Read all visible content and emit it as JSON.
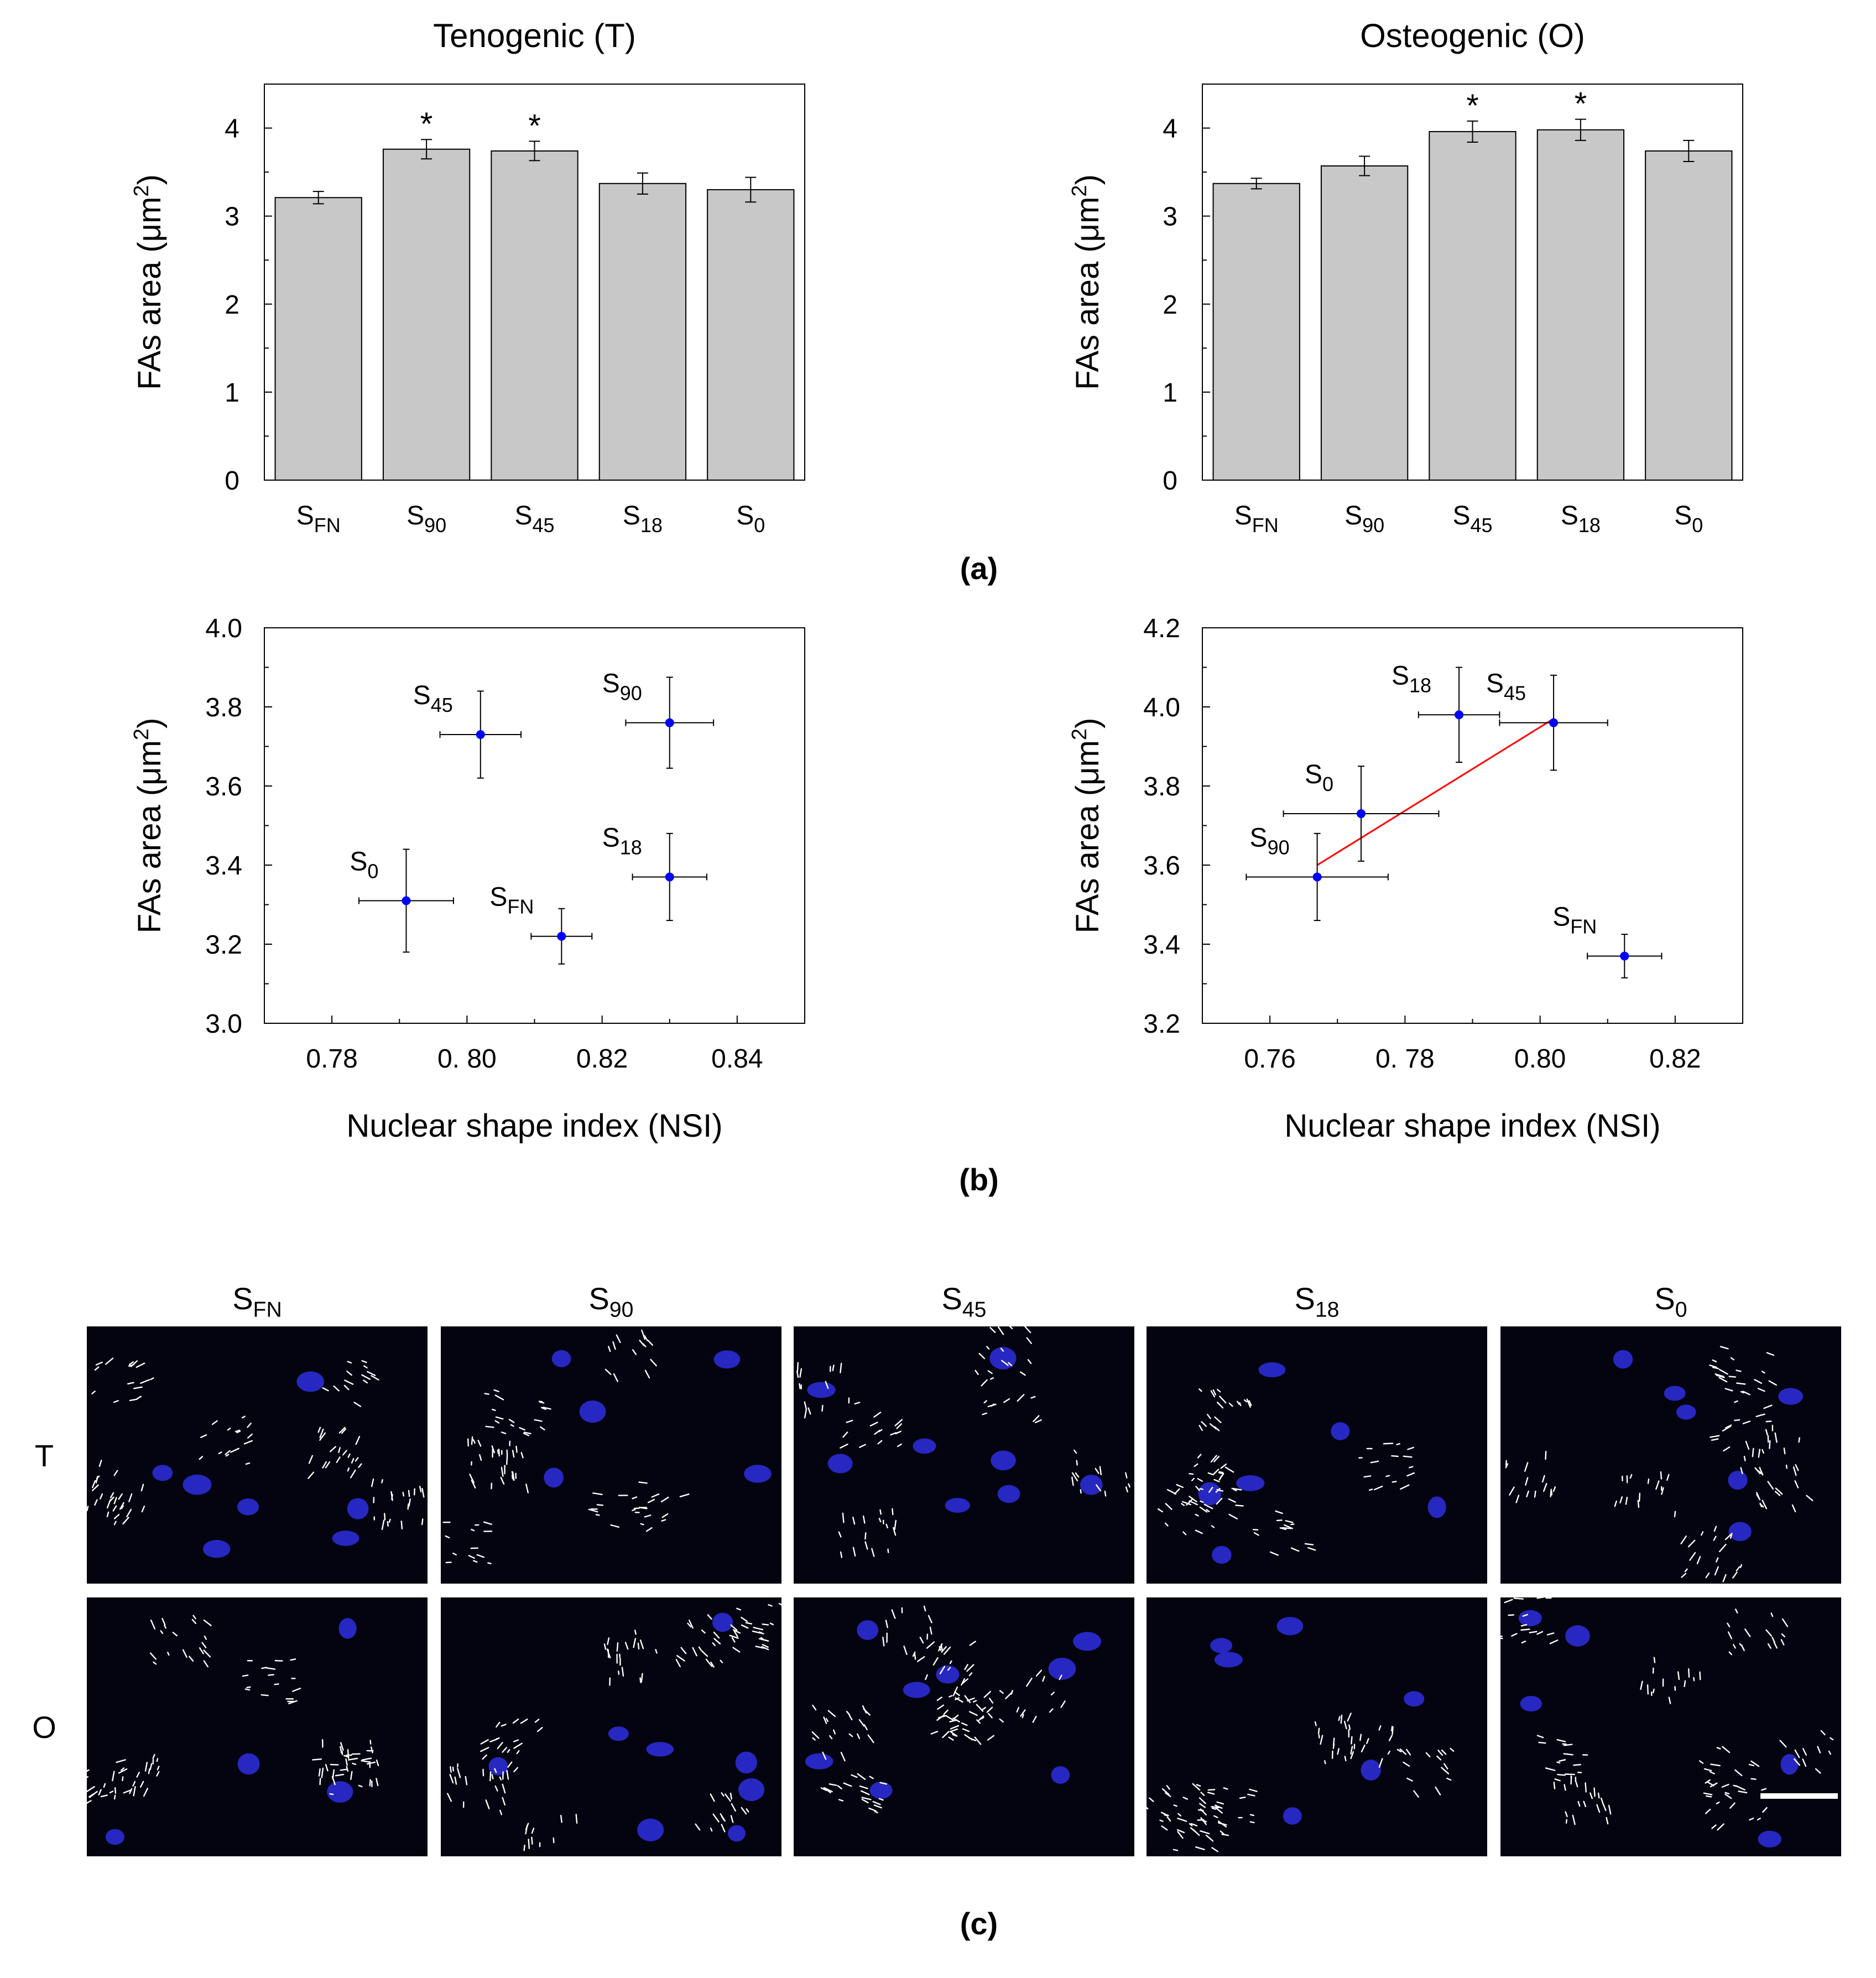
{
  "panel_labels": {
    "a": "(a)",
    "b": "(b)",
    "c": "(c)"
  },
  "colors": {
    "bar_fill": "#c8c8c8",
    "point": "#0000ff",
    "fit_line": "#ff0000",
    "image_bg": "#03040f",
    "nucleus": "#2b2bd6",
    "focal_adhesion": "#ffffff"
  },
  "chart_data": [
    {
      "id": "bar-tenogenic",
      "type": "bar",
      "title": "Tenogenic (T)",
      "xlabel": "",
      "ylabel": "FAs area (μm²)",
      "ylim": [
        0,
        4.5
      ],
      "yticks": [
        0,
        1,
        2,
        3,
        4
      ],
      "categories": [
        {
          "base": "S",
          "sub": "FN"
        },
        {
          "base": "S",
          "sub": "90"
        },
        {
          "base": "S",
          "sub": "45"
        },
        {
          "base": "S",
          "sub": "18"
        },
        {
          "base": "S",
          "sub": "0"
        }
      ],
      "values": [
        3.21,
        3.76,
        3.74,
        3.37,
        3.3
      ],
      "errors": [
        0.07,
        0.11,
        0.11,
        0.12,
        0.14
      ],
      "annotations": [
        "",
        "*",
        "*",
        "",
        ""
      ]
    },
    {
      "id": "bar-osteogenic",
      "type": "bar",
      "title": "Osteogenic (O)",
      "xlabel": "",
      "ylabel": "FAs area (μm²)",
      "ylim": [
        0,
        4.5
      ],
      "yticks": [
        0,
        1,
        2,
        3,
        4
      ],
      "categories": [
        {
          "base": "S",
          "sub": "FN"
        },
        {
          "base": "S",
          "sub": "90"
        },
        {
          "base": "S",
          "sub": "45"
        },
        {
          "base": "S",
          "sub": "18"
        },
        {
          "base": "S",
          "sub": "0"
        }
      ],
      "values": [
        3.37,
        3.57,
        3.96,
        3.98,
        3.74
      ],
      "errors": [
        0.06,
        0.11,
        0.12,
        0.12,
        0.12
      ],
      "annotations": [
        "",
        "",
        "*",
        "*",
        ""
      ]
    },
    {
      "id": "scatter-tenogenic",
      "type": "scatter",
      "xlabel": "Nuclear shape index (NSI)",
      "ylabel": "FAs area (μm²)",
      "xlim": [
        0.77,
        0.85
      ],
      "ylim": [
        3.0,
        4.0
      ],
      "xticks": [
        0.78,
        0.8,
        0.82,
        0.84
      ],
      "xtick_labels": [
        "0.78",
        "0. 80",
        "0.82",
        "0.84"
      ],
      "yticks": [
        3.0,
        3.2,
        3.4,
        3.6,
        3.8,
        4.0
      ],
      "ytick_labels": [
        "3.0",
        "3.2",
        "3.4",
        "3.6",
        "3.8",
        "4.0"
      ],
      "points": [
        {
          "label": {
            "base": "S",
            "sub": "45"
          },
          "x": 0.802,
          "y": 3.73,
          "xerr": 0.006,
          "yerr": 0.11,
          "label_pos": "upper-left"
        },
        {
          "label": {
            "base": "S",
            "sub": "90"
          },
          "x": 0.83,
          "y": 3.76,
          "xerr": 0.0065,
          "yerr": 0.115,
          "label_pos": "upper-left"
        },
        {
          "label": {
            "base": "S",
            "sub": "0"
          },
          "x": 0.791,
          "y": 3.31,
          "xerr": 0.007,
          "yerr": 0.13,
          "label_pos": "upper-left"
        },
        {
          "label": {
            "base": "S",
            "sub": "FN"
          },
          "x": 0.814,
          "y": 3.22,
          "xerr": 0.0045,
          "yerr": 0.07,
          "label_pos": "upper-left"
        },
        {
          "label": {
            "base": "S",
            "sub": "18"
          },
          "x": 0.83,
          "y": 3.37,
          "xerr": 0.0055,
          "yerr": 0.11,
          "label_pos": "upper-left"
        }
      ]
    },
    {
      "id": "scatter-osteogenic",
      "type": "scatter",
      "xlabel": "Nuclear shape index (NSI)",
      "ylabel": "FAs area (μm²)",
      "xlim": [
        0.75,
        0.83
      ],
      "ylim": [
        3.2,
        4.2
      ],
      "xticks": [
        0.76,
        0.78,
        0.8,
        0.82
      ],
      "xtick_labels": [
        "0.76",
        "0. 78",
        "0.80",
        "0.82"
      ],
      "yticks": [
        3.2,
        3.4,
        3.6,
        3.8,
        4.0,
        4.2
      ],
      "ytick_labels": [
        "3.2",
        "3.4",
        "3.6",
        "3.8",
        "4.0",
        "4.2"
      ],
      "points": [
        {
          "label": {
            "base": "S",
            "sub": "18"
          },
          "x": 0.788,
          "y": 3.98,
          "xerr": 0.006,
          "yerr": 0.12,
          "label_pos": "upper-left"
        },
        {
          "label": {
            "base": "S",
            "sub": "45"
          },
          "x": 0.802,
          "y": 3.96,
          "xerr": 0.008,
          "yerr": 0.12,
          "label_pos": "upper-left"
        },
        {
          "label": {
            "base": "S",
            "sub": "0"
          },
          "x": 0.7735,
          "y": 3.73,
          "xerr": 0.0115,
          "yerr": 0.12,
          "label_pos": "upper-left"
        },
        {
          "label": {
            "base": "S",
            "sub": "90"
          },
          "x": 0.767,
          "y": 3.57,
          "xerr": 0.0105,
          "yerr": 0.11,
          "label_pos": "upper-left"
        },
        {
          "label": {
            "base": "S",
            "sub": "FN"
          },
          "x": 0.8125,
          "y": 3.37,
          "xerr": 0.0055,
          "yerr": 0.055,
          "label_pos": "upper-left"
        }
      ],
      "fit_line": {
        "x": [
          0.767,
          0.802
        ],
        "y": [
          3.6,
          3.97
        ]
      }
    }
  ],
  "image_grid": {
    "columns": [
      {
        "base": "S",
        "sub": "FN"
      },
      {
        "base": "S",
        "sub": "90"
      },
      {
        "base": "S",
        "sub": "45"
      },
      {
        "base": "S",
        "sub": "18"
      },
      {
        "base": "S",
        "sub": "0"
      }
    ],
    "rows": [
      "T",
      "O"
    ]
  }
}
